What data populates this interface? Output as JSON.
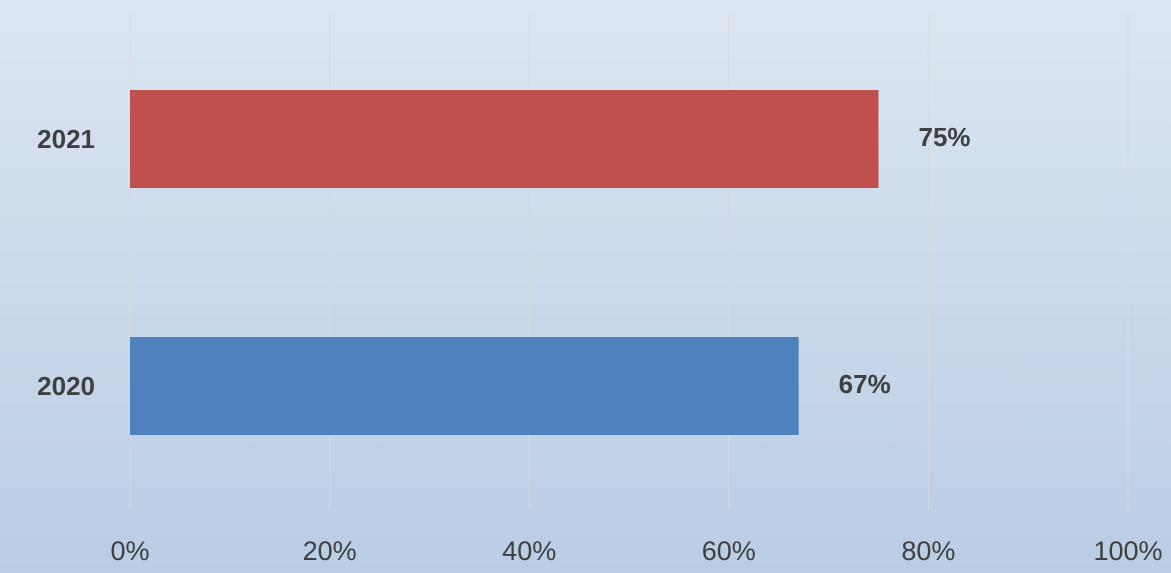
{
  "chart_data": {
    "type": "barh",
    "categories": [
      "2021",
      "2020"
    ],
    "values": [
      75,
      67
    ],
    "value_labels": [
      "75%",
      "67%"
    ],
    "colors": [
      "#c0504d",
      "#4f81bd"
    ],
    "xlim": [
      0,
      100
    ],
    "xticks": [
      {
        "value": 0,
        "label": "0%"
      },
      {
        "value": 20,
        "label": "20%"
      },
      {
        "value": 40,
        "label": "40%"
      },
      {
        "value": 60,
        "label": "60%"
      },
      {
        "value": 80,
        "label": "80%"
      },
      {
        "value": 100,
        "label": "100%"
      }
    ],
    "grid": true
  }
}
